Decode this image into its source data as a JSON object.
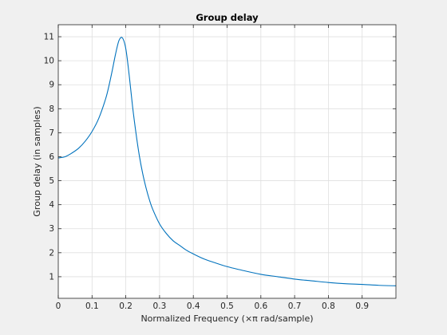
{
  "chart_data": {
    "type": "line",
    "title": "Group delay",
    "xlabel": "Normalized Frequency (×π rad/sample)",
    "ylabel": "Group delay (in samples)",
    "xlim": [
      0,
      1
    ],
    "ylim": [
      0.1,
      11.5
    ],
    "xticks": [
      0,
      0.1,
      0.2,
      0.3,
      0.4,
      0.5,
      0.6,
      0.7,
      0.8,
      0.9
    ],
    "xtick_labels": [
      "0",
      "0.1",
      "0.2",
      "0.3",
      "0.4",
      "0.5",
      "0.6",
      "0.7",
      "0.8",
      "0.9"
    ],
    "yticks": [
      1,
      2,
      3,
      4,
      5,
      6,
      7,
      8,
      9,
      10,
      11
    ],
    "ytick_labels": [
      "1",
      "2",
      "3",
      "4",
      "5",
      "6",
      "7",
      "8",
      "9",
      "10",
      "11"
    ],
    "grid": true,
    "series": [
      {
        "color": "#0072bd",
        "x": [
          0,
          0.02,
          0.04,
          0.06,
          0.08,
          0.1,
          0.12,
          0.14,
          0.15,
          0.16,
          0.17,
          0.18,
          0.19,
          0.2,
          0.21,
          0.22,
          0.23,
          0.24,
          0.25,
          0.26,
          0.27,
          0.28,
          0.3,
          0.32,
          0.34,
          0.36,
          0.38,
          0.4,
          0.43,
          0.46,
          0.5,
          0.55,
          0.6,
          0.65,
          0.7,
          0.75,
          0.8,
          0.85,
          0.9,
          0.95,
          1.0
        ],
        "y": [
          5.95,
          6.0,
          6.15,
          6.35,
          6.65,
          7.05,
          7.6,
          8.4,
          8.95,
          9.6,
          10.3,
          10.85,
          10.95,
          10.5,
          9.4,
          8.1,
          7.0,
          6.05,
          5.3,
          4.7,
          4.2,
          3.8,
          3.2,
          2.8,
          2.5,
          2.3,
          2.1,
          1.95,
          1.75,
          1.6,
          1.42,
          1.25,
          1.1,
          1.0,
          0.9,
          0.83,
          0.76,
          0.71,
          0.68,
          0.64,
          0.62
        ]
      }
    ]
  }
}
